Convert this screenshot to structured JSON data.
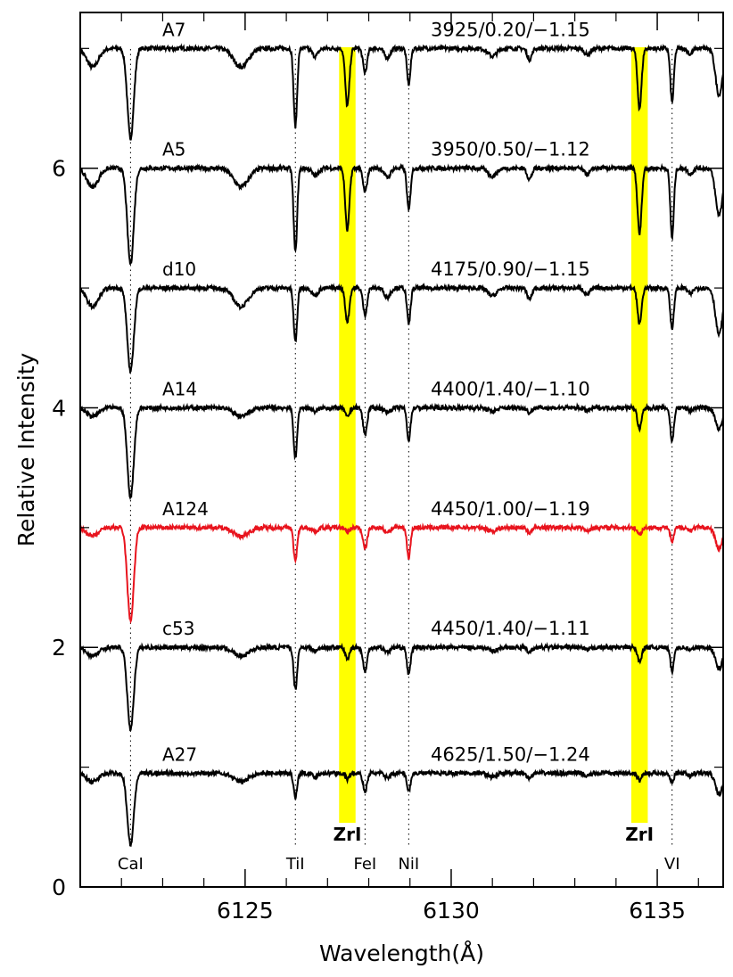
{
  "chart_data": {
    "type": "line",
    "xlabel": "Wavelength(Å)",
    "ylabel": "Relative Intensity",
    "xlim": [
      6121.0,
      6136.6
    ],
    "ylim": [
      0,
      7.3
    ],
    "x_ticks": [
      6125,
      6130,
      6135
    ],
    "x_tick_labels": [
      "6125",
      "6130",
      "6135"
    ],
    "y_ticks": [
      0,
      2,
      4,
      6
    ],
    "y_tick_labels": [
      "0",
      "2",
      "4",
      "6"
    ],
    "highlight_bands": [
      {
        "label": "ZrI",
        "x_center": 6127.48,
        "width": 0.4,
        "color": "#ffff00"
      },
      {
        "label": "ZrI",
        "x_center": 6134.57,
        "width": 0.4,
        "color": "#ffff00"
      }
    ],
    "reference_lines": [
      {
        "label": "CaI",
        "x": 6122.22
      },
      {
        "label": "TiI",
        "x": 6126.22
      },
      {
        "label": "FeI",
        "x": 6127.91
      },
      {
        "label": "NiI",
        "x": 6128.97
      },
      {
        "label": "VI",
        "x": 6135.36
      }
    ],
    "series": [
      {
        "name": "A7",
        "params": "3925/0.20/−1.15",
        "continuum": 7.0,
        "color": "#000000",
        "lines": {
          "CaI": 0.75,
          "TiI": 0.65,
          "ZrI1": 0.48,
          "FeI": 0.2,
          "NiI": 0.3,
          "ZrI2": 0.5,
          "VI": 0.45
        }
      },
      {
        "name": "A5",
        "params": "3950/0.50/−1.12",
        "continuum": 6.0,
        "color": "#000000",
        "lines": {
          "CaI": 0.8,
          "TiI": 0.7,
          "ZrI1": 0.52,
          "FeI": 0.2,
          "NiI": 0.35,
          "ZrI2": 0.55,
          "VI": 0.58
        }
      },
      {
        "name": "d10",
        "params": "4175/0.90/−1.15",
        "continuum": 5.0,
        "color": "#000000",
        "lines": {
          "CaI": 0.7,
          "TiI": 0.45,
          "ZrI1": 0.28,
          "FeI": 0.22,
          "NiI": 0.3,
          "ZrI2": 0.3,
          "VI": 0.35
        }
      },
      {
        "name": "A14",
        "params": "4400/1.40/−1.10",
        "continuum": 4.0,
        "color": "#000000",
        "lines": {
          "CaI": 0.75,
          "TiI": 0.42,
          "ZrI1": 0.08,
          "FeI": 0.22,
          "NiI": 0.27,
          "ZrI2": 0.18,
          "VI": 0.28
        }
      },
      {
        "name": "A124",
        "params": "4450/1.00/−1.19",
        "continuum": 3.0,
        "color": "#e8141e",
        "lines": {
          "CaI": 0.78,
          "TiI": 0.28,
          "ZrI1": 0.04,
          "FeI": 0.18,
          "NiI": 0.25,
          "ZrI2": 0.06,
          "VI": 0.12
        }
      },
      {
        "name": "c53",
        "params": "4450/1.40/−1.11",
        "continuum": 2.0,
        "color": "#000000",
        "lines": {
          "CaI": 0.68,
          "TiI": 0.35,
          "ZrI1": 0.1,
          "FeI": 0.2,
          "NiI": 0.23,
          "ZrI2": 0.12,
          "VI": 0.2
        }
      },
      {
        "name": "A27",
        "params": "4625/1.50/−1.24",
        "continuum": 0.95,
        "color": "#000000",
        "lines": {
          "CaI": 0.6,
          "TiI": 0.2,
          "ZrI1": 0.05,
          "FeI": 0.15,
          "NiI": 0.15,
          "ZrI2": 0.06,
          "VI": 0.08
        }
      }
    ]
  }
}
